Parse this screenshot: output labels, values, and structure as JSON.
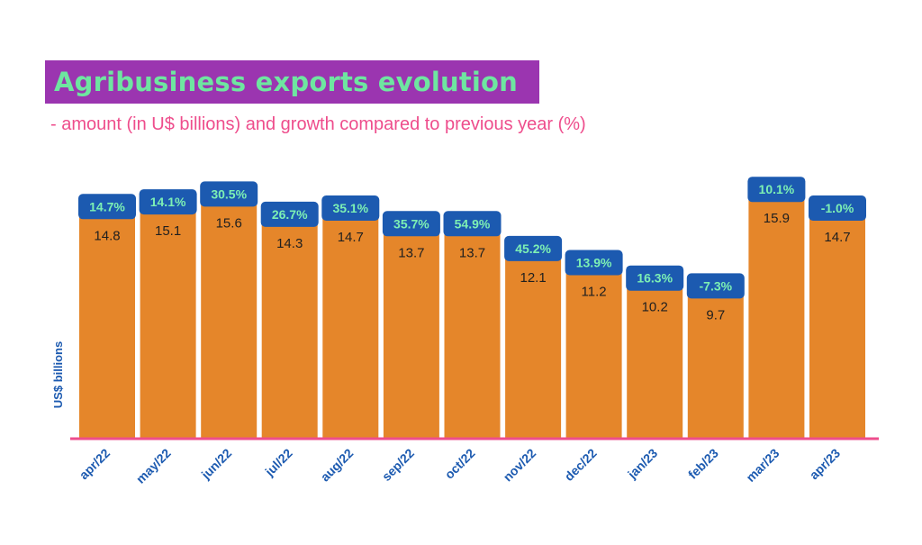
{
  "title": "Agribusiness exports evolution",
  "subtitle": "- amount (in U$ billions) and growth compared to previous year (%)",
  "chart_data": {
    "type": "bar",
    "title": "Agribusiness exports evolution",
    "subtitle": "- amount (in U$ billions) and growth compared to previous year (%)",
    "ylabel": "US$ billions",
    "xlabel": "",
    "categories": [
      "apr/22",
      "may/22",
      "jun/22",
      "jul/22",
      "aug/22",
      "sep/22",
      "oct/22",
      "nov/22",
      "dec/22",
      "jan/23",
      "feb/23",
      "mar/23",
      "apr/23"
    ],
    "values": [
      14.8,
      15.1,
      15.6,
      14.3,
      14.7,
      13.7,
      13.7,
      12.1,
      11.2,
      10.2,
      9.7,
      15.9,
      14.7
    ],
    "value_labels": [
      "14.8",
      "15.1",
      "15.6",
      "14.3",
      "14.7",
      "13.7",
      "13.7",
      "12.1",
      "11.2",
      "10.2",
      "9.7",
      "15.9",
      "14.7"
    ],
    "growth_labels": [
      "14.7%",
      "14.1%",
      "30.5%",
      "26.7%",
      "35.1%",
      "35.7%",
      "54.9%",
      "45.2%",
      "13.9%",
      "16.3%",
      "-7.3%",
      "10.1%",
      "-1.0%"
    ],
    "growth_values": [
      14.7,
      14.1,
      30.5,
      26.7,
      35.1,
      35.7,
      54.9,
      45.2,
      13.9,
      16.3,
      -7.3,
      10.1,
      -1.0
    ],
    "grid": false,
    "legend": "none",
    "colors": {
      "bar": "#e5862a",
      "badge": "#1c5ab0",
      "badge_text": "#7df0b4",
      "axis_line": "#ee4d8c",
      "tick_label": "#1c5ab0",
      "title_bg": "#9b35b0",
      "title_text": "#6ee6a0",
      "subtitle": "#ee4d8c"
    }
  }
}
